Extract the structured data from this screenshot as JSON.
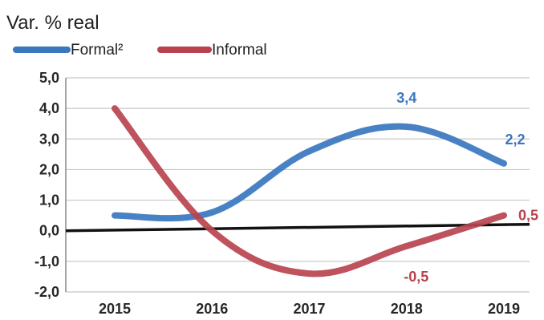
{
  "chart_data": {
    "type": "line",
    "title": "Var. % real",
    "xlabel": "",
    "ylabel": "",
    "categories": [
      "2015",
      "2016",
      "2017",
      "2018",
      "2019"
    ],
    "ylim": [
      -2.0,
      5.0
    ],
    "yticks": [
      "5,0",
      "4,0",
      "3,0",
      "2,0",
      "1,0",
      "0,0",
      "-1,0",
      "-2,0"
    ],
    "grid": true,
    "smooth": true,
    "legend_position": "top-left",
    "series": [
      {
        "name": "Formal²",
        "color": "#3a77bf",
        "values": [
          0.5,
          0.6,
          2.6,
          3.4,
          2.2
        ],
        "labels": [
          "",
          "",
          "",
          "3,4",
          "2,2"
        ]
      },
      {
        "name": "Informal",
        "color": "#b8434f",
        "values": [
          4.0,
          0.0,
          -1.4,
          -0.5,
          0.5
        ],
        "labels": [
          "",
          "",
          "",
          "-0,5",
          "0,5"
        ]
      }
    ]
  }
}
